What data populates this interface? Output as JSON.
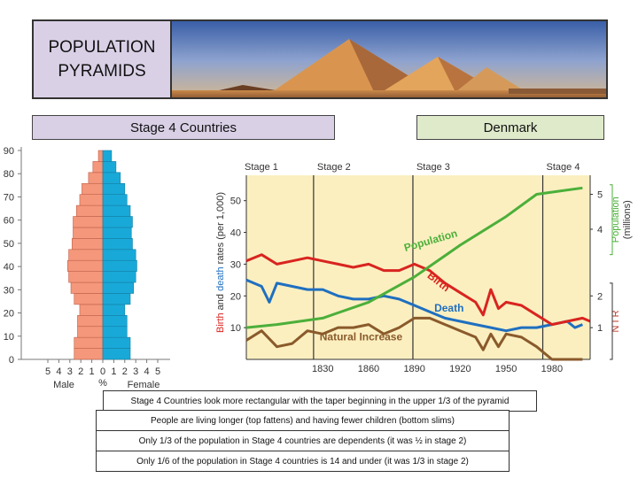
{
  "slide": {
    "title": "POPULATION\nPYRAMIDS",
    "stage_label": "Stage 4 Countries",
    "country_label": "Denmark",
    "notes": [
      "Stage 4 Countries look more rectangular with the taper beginning in the upper 1/3 of the pyramid",
      "People are living longer (top fattens) and having fewer children (bottom slims)",
      "Only 1/3 of the population in Stage 4 countries are dependents (it was ½ in stage 2)",
      "Only 1/6 of the population in Stage 4 countries is 14 and under (it was 1/3 in stage 2)"
    ]
  },
  "pyramid": {
    "age_ticks": [
      "0",
      "10",
      "20",
      "30",
      "40",
      "50",
      "60",
      "70",
      "80",
      "90"
    ],
    "x_ticks": [
      "5",
      "4",
      "3",
      "2",
      "1",
      "0",
      "1",
      "2",
      "3",
      "4",
      "5"
    ],
    "male_label": "Male",
    "percent_label": "%",
    "female_label": "Female",
    "colors": {
      "male": "#f4977a",
      "female": "#19a9d8"
    },
    "male_values": [
      2.6,
      2.6,
      2.3,
      2.3,
      2.1,
      2.6,
      2.9,
      3.1,
      3.2,
      3.1,
      2.8,
      2.7,
      2.7,
      2.4,
      2.1,
      1.9,
      1.3,
      0.9,
      0.4
    ],
    "female_values": [
      2.5,
      2.5,
      2.2,
      2.2,
      2.0,
      2.5,
      2.8,
      3.0,
      3.1,
      3.0,
      2.7,
      2.6,
      2.7,
      2.5,
      2.2,
      2.0,
      1.6,
      1.2,
      0.8
    ]
  },
  "transition": {
    "stages": [
      "Stage 1",
      "Stage 2",
      "Stage 3",
      "Stage 4"
    ],
    "x_ticks": [
      "1830",
      "1860",
      "1890",
      "1920",
      "1950",
      "1980"
    ],
    "y_ticks": [
      "10",
      "20",
      "30",
      "40",
      "50"
    ],
    "y_label_part1": "Birth",
    "y_label_part2": " and ",
    "y_label_part3": "death",
    "y_label_part4": " rates (per 1,000)",
    "right_label_top": "Population",
    "right_label_bottom": "(millions)",
    "right_ticks": [
      "1",
      "2",
      "4",
      "5"
    ],
    "nir_label": "N I R",
    "curve_labels": {
      "population": "Population",
      "birth": "Birth",
      "death": "Death",
      "natural_increase": "Natural Increase"
    },
    "colors": {
      "population": "#4caf3a",
      "birth": "#d9241f",
      "death": "#1f6fc0",
      "natural_increase": "#8a5a2b",
      "background": "#fbefc0"
    },
    "series": {
      "population": [
        [
          1780,
          10
        ],
        [
          1800,
          11
        ],
        [
          1830,
          13
        ],
        [
          1860,
          18
        ],
        [
          1890,
          26
        ],
        [
          1920,
          36
        ],
        [
          1950,
          45
        ],
        [
          1970,
          52
        ],
        [
          1985,
          53
        ],
        [
          2000,
          54
        ]
      ],
      "birth": [
        [
          1780,
          31
        ],
        [
          1790,
          33
        ],
        [
          1800,
          30
        ],
        [
          1810,
          31
        ],
        [
          1820,
          32
        ],
        [
          1830,
          31
        ],
        [
          1840,
          30
        ],
        [
          1850,
          29
        ],
        [
          1860,
          30
        ],
        [
          1870,
          28
        ],
        [
          1880,
          28
        ],
        [
          1890,
          30
        ],
        [
          1900,
          28
        ],
        [
          1910,
          24
        ],
        [
          1920,
          21
        ],
        [
          1930,
          18
        ],
        [
          1935,
          14
        ],
        [
          1940,
          22
        ],
        [
          1945,
          16
        ],
        [
          1950,
          18
        ],
        [
          1960,
          17
        ],
        [
          1970,
          14
        ],
        [
          1980,
          11
        ],
        [
          1990,
          12
        ],
        [
          2000,
          13
        ],
        [
          2005,
          12
        ]
      ],
      "death": [
        [
          1780,
          25
        ],
        [
          1790,
          23
        ],
        [
          1795,
          18
        ],
        [
          1800,
          24
        ],
        [
          1810,
          23
        ],
        [
          1820,
          22
        ],
        [
          1830,
          22
        ],
        [
          1840,
          20
        ],
        [
          1850,
          19
        ],
        [
          1860,
          19
        ],
        [
          1870,
          20
        ],
        [
          1880,
          19
        ],
        [
          1890,
          17
        ],
        [
          1900,
          15
        ],
        [
          1910,
          13
        ],
        [
          1920,
          12
        ],
        [
          1930,
          11
        ],
        [
          1940,
          10
        ],
        [
          1950,
          9
        ],
        [
          1960,
          10
        ],
        [
          1970,
          10
        ],
        [
          1980,
          11
        ],
        [
          1990,
          12
        ],
        [
          1995,
          10
        ],
        [
          2000,
          11
        ]
      ],
      "natural_increase": [
        [
          1780,
          6
        ],
        [
          1790,
          9
        ],
        [
          1800,
          4
        ],
        [
          1810,
          5
        ],
        [
          1820,
          9
        ],
        [
          1830,
          8
        ],
        [
          1840,
          10
        ],
        [
          1850,
          10
        ],
        [
          1860,
          11
        ],
        [
          1870,
          8
        ],
        [
          1880,
          10
        ],
        [
          1890,
          13
        ],
        [
          1900,
          13
        ],
        [
          1910,
          11
        ],
        [
          1920,
          9
        ],
        [
          1930,
          7
        ],
        [
          1935,
          3
        ],
        [
          1940,
          8
        ],
        [
          1945,
          4
        ],
        [
          1950,
          8
        ],
        [
          1960,
          7
        ],
        [
          1970,
          4
        ],
        [
          1980,
          0
        ],
        [
          1990,
          0
        ],
        [
          2000,
          0
        ]
      ]
    }
  }
}
